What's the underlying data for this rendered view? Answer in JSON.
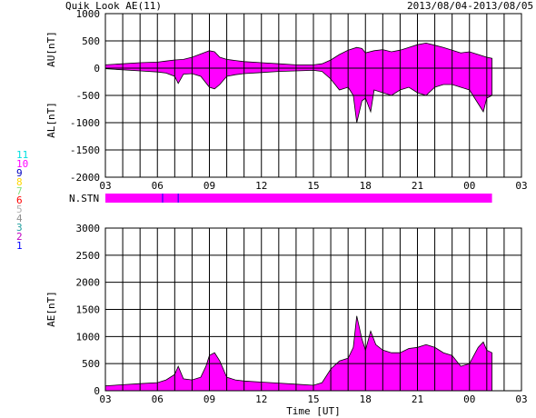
{
  "header": {
    "title": "Quik Look AE(11)",
    "date_range": "2013/08/04-2013/08/05"
  },
  "station_key": [
    {
      "label": "11",
      "color": "#00e0e0"
    },
    {
      "label": "10",
      "color": "#ff00ff"
    },
    {
      "label": "9",
      "color": "#0000c0"
    },
    {
      "label": "8",
      "color": "#ffd700"
    },
    {
      "label": "7",
      "color": "#80e080"
    },
    {
      "label": "6",
      "color": "#ff0000"
    },
    {
      "label": "5",
      "color": "#b0b0b0"
    },
    {
      "label": "4",
      "color": "#909090"
    },
    {
      "label": "3",
      "color": "#20a0a0"
    },
    {
      "label": "2",
      "color": "#c000c0"
    },
    {
      "label": "1",
      "color": "#0000ff"
    }
  ],
  "nstn_label": "N.STN",
  "colors": {
    "fill": "#ff00ff",
    "outline": "#000000",
    "grid": "#000000",
    "marker": "#0000ff"
  },
  "chart_data": [
    {
      "type": "area",
      "panel": "AU/AL",
      "ylabel_top": "AU[nT]",
      "ylabel_bottom": "AL[nT]",
      "ylim": [
        -2000,
        1000
      ],
      "yticks": [
        1000,
        500,
        0,
        -500,
        -1000,
        -1500,
        -2000
      ],
      "xlim": [
        3,
        27
      ],
      "xticks": [
        "03",
        "06",
        "09",
        "12",
        "15",
        "18",
        "21",
        "00",
        "03"
      ],
      "grid": true,
      "series": [
        {
          "name": "AU",
          "x": [
            3.0,
            4.0,
            5.0,
            6.0,
            6.5,
            7.0,
            7.5,
            8.0,
            8.5,
            9.0,
            9.3,
            9.6,
            10.0,
            10.5,
            11.0,
            12.0,
            13.0,
            14.0,
            15.0,
            15.5,
            16.0,
            16.5,
            17.0,
            17.5,
            17.8,
            18.0,
            18.5,
            19.0,
            19.5,
            20.0,
            20.5,
            21.0,
            21.5,
            22.0,
            22.5,
            23.0,
            23.5,
            24.0,
            24.5,
            25.0,
            25.3
          ],
          "values": [
            60,
            80,
            100,
            110,
            130,
            150,
            160,
            200,
            260,
            320,
            300,
            200,
            160,
            140,
            120,
            100,
            80,
            60,
            60,
            80,
            150,
            250,
            330,
            380,
            360,
            280,
            320,
            340,
            300,
            330,
            380,
            430,
            460,
            420,
            380,
            330,
            280,
            300,
            250,
            200,
            180
          ]
        },
        {
          "name": "AL",
          "x": [
            3.0,
            4.0,
            5.0,
            6.0,
            6.5,
            7.0,
            7.2,
            7.5,
            8.0,
            8.5,
            9.0,
            9.3,
            9.6,
            10.0,
            10.5,
            11.0,
            12.0,
            13.0,
            14.0,
            15.0,
            15.5,
            16.0,
            16.5,
            17.0,
            17.3,
            17.5,
            17.8,
            18.0,
            18.3,
            18.5,
            19.0,
            19.5,
            20.0,
            20.5,
            21.0,
            21.5,
            22.0,
            22.5,
            23.0,
            23.5,
            24.0,
            24.5,
            24.8,
            25.0,
            25.3
          ],
          "values": [
            -10,
            -30,
            -50,
            -70,
            -90,
            -150,
            -280,
            -110,
            -100,
            -150,
            -350,
            -380,
            -300,
            -150,
            -120,
            -100,
            -80,
            -60,
            -50,
            -40,
            -60,
            -200,
            -400,
            -350,
            -500,
            -1000,
            -600,
            -550,
            -800,
            -400,
            -450,
            -500,
            -400,
            -350,
            -450,
            -500,
            -350,
            -300,
            -300,
            -350,
            -400,
            -650,
            -800,
            -550,
            -500
          ]
        }
      ]
    },
    {
      "type": "area",
      "panel": "AE",
      "ylabel": "AE[nT]",
      "ylim": [
        0,
        3000
      ],
      "yticks": [
        3000,
        2500,
        2000,
        1500,
        1000,
        500,
        0
      ],
      "xlim": [
        3,
        27
      ],
      "xticks": [
        "03",
        "06",
        "09",
        "12",
        "15",
        "18",
        "21",
        "00",
        "03"
      ],
      "xlabel": "Time [UT]",
      "grid": true,
      "series": [
        {
          "name": "AE",
          "x": [
            3.0,
            4.0,
            5.0,
            6.0,
            6.5,
            7.0,
            7.2,
            7.5,
            8.0,
            8.5,
            8.8,
            9.0,
            9.3,
            9.6,
            10.0,
            10.5,
            11.0,
            12.0,
            13.0,
            14.0,
            15.0,
            15.5,
            16.0,
            16.5,
            17.0,
            17.3,
            17.5,
            17.8,
            18.0,
            18.3,
            18.6,
            19.0,
            19.5,
            20.0,
            20.5,
            21.0,
            21.5,
            22.0,
            22.5,
            23.0,
            23.5,
            24.0,
            24.5,
            24.8,
            25.0,
            25.3
          ],
          "values": [
            90,
            110,
            130,
            150,
            200,
            300,
            450,
            220,
            200,
            250,
            450,
            650,
            700,
            550,
            250,
            200,
            180,
            160,
            140,
            120,
            100,
            150,
            400,
            550,
            600,
            800,
            1380,
            950,
            750,
            1100,
            850,
            750,
            700,
            700,
            780,
            800,
            850,
            800,
            700,
            650,
            450,
            500,
            800,
            900,
            750,
            700
          ]
        }
      ]
    }
  ]
}
